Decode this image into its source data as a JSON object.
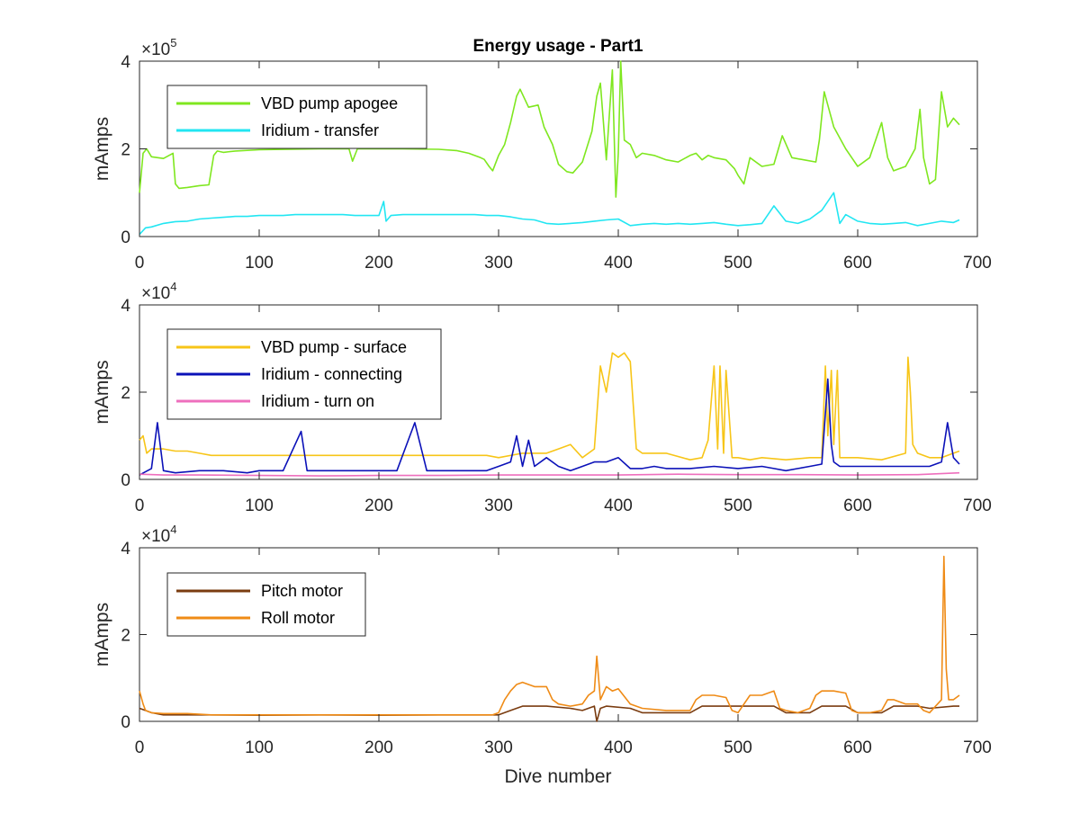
{
  "figure": {
    "title": "Energy usage - Part1",
    "xlabel": "Dive number"
  },
  "chart_data": [
    {
      "type": "line",
      "title": "Energy usage - Part1",
      "ylabel": "mAmps",
      "xlabel": "",
      "exponent_base": "×10",
      "exponent": "5",
      "xlim": [
        0,
        700
      ],
      "ylim": [
        0,
        400000
      ],
      "xticks": [
        "0",
        "100",
        "200",
        "300",
        "400",
        "500",
        "600",
        "700"
      ],
      "yticks": [
        "0",
        "2",
        "4"
      ],
      "ytick_values": [
        0,
        200000,
        400000
      ],
      "legend_position": "top-left",
      "series": [
        {
          "name": "VBD pump apogee",
          "color": "#7fe71f",
          "x": [
            0,
            3,
            6,
            10,
            20,
            28,
            30,
            33,
            40,
            50,
            58,
            62,
            65,
            70,
            80,
            100,
            150,
            175,
            178,
            182,
            190,
            200,
            220,
            250,
            265,
            275,
            285,
            288,
            292,
            295,
            300,
            305,
            310,
            315,
            318,
            325,
            333,
            338,
            345,
            350,
            357,
            362,
            370,
            378,
            382,
            385,
            390,
            395,
            398,
            400,
            402,
            405,
            410,
            415,
            420,
            430,
            440,
            450,
            460,
            465,
            470,
            475,
            480,
            490,
            497,
            500,
            505,
            510,
            520,
            530,
            537,
            545,
            555,
            565,
            568,
            572,
            580,
            590,
            595,
            600,
            610,
            620,
            625,
            630,
            640,
            648,
            652,
            655,
            660,
            665,
            670,
            675,
            680,
            685
          ],
          "y": [
            100000,
            190000,
            200000,
            182000,
            178000,
            190000,
            120000,
            110000,
            112000,
            116000,
            118000,
            185000,
            195000,
            192000,
            195000,
            198000,
            200000,
            200000,
            172000,
            200000,
            200000,
            200000,
            200000,
            199000,
            196000,
            190000,
            180000,
            176000,
            160000,
            150000,
            185000,
            210000,
            260000,
            320000,
            336000,
            295000,
            300000,
            250000,
            210000,
            165000,
            148000,
            145000,
            170000,
            240000,
            320000,
            350000,
            175000,
            380000,
            90000,
            190000,
            400000,
            220000,
            210000,
            180000,
            190000,
            185000,
            175000,
            170000,
            185000,
            190000,
            175000,
            185000,
            180000,
            175000,
            155000,
            140000,
            120000,
            180000,
            160000,
            165000,
            230000,
            180000,
            175000,
            170000,
            220000,
            330000,
            250000,
            200000,
            180000,
            160000,
            180000,
            260000,
            180000,
            150000,
            160000,
            200000,
            290000,
            180000,
            120000,
            130000,
            330000,
            250000,
            270000,
            255000
          ]
        },
        {
          "name": "Iridium - transfer",
          "color": "#22e6f2",
          "x": [
            0,
            5,
            10,
            20,
            30,
            40,
            50,
            60,
            70,
            80,
            90,
            100,
            110,
            120,
            130,
            140,
            150,
            160,
            170,
            180,
            190,
            200,
            204,
            206,
            210,
            220,
            230,
            240,
            250,
            260,
            270,
            280,
            290,
            300,
            310,
            320,
            330,
            340,
            350,
            360,
            370,
            380,
            390,
            400,
            410,
            420,
            430,
            440,
            450,
            460,
            470,
            480,
            490,
            500,
            510,
            520,
            530,
            540,
            550,
            560,
            570,
            580,
            585,
            590,
            600,
            610,
            620,
            630,
            640,
            650,
            660,
            670,
            680,
            685
          ],
          "y": [
            5000,
            20000,
            22000,
            30000,
            34000,
            35000,
            40000,
            42000,
            44000,
            46000,
            46000,
            48000,
            48000,
            48000,
            50000,
            50000,
            50000,
            50000,
            50000,
            48000,
            48000,
            48000,
            80000,
            35000,
            48000,
            50000,
            50000,
            50000,
            50000,
            50000,
            50000,
            50000,
            48000,
            48000,
            45000,
            40000,
            38000,
            30000,
            28000,
            30000,
            32000,
            35000,
            38000,
            40000,
            25000,
            28000,
            30000,
            28000,
            30000,
            28000,
            30000,
            32000,
            28000,
            25000,
            27000,
            30000,
            70000,
            35000,
            30000,
            40000,
            60000,
            100000,
            30000,
            50000,
            35000,
            30000,
            28000,
            30000,
            32000,
            25000,
            30000,
            35000,
            32000,
            38000
          ]
        }
      ]
    },
    {
      "type": "line",
      "title": "",
      "ylabel": "mAmps",
      "xlabel": "",
      "exponent_base": "×10",
      "exponent": "4",
      "xlim": [
        0,
        700
      ],
      "ylim": [
        0,
        40000
      ],
      "xticks": [
        "0",
        "100",
        "200",
        "300",
        "400",
        "500",
        "600",
        "700"
      ],
      "yticks": [
        "0",
        "2",
        "4"
      ],
      "ytick_values": [
        0,
        20000,
        40000
      ],
      "legend_position": "top-left",
      "series": [
        {
          "name": "VBD pump - surface",
          "color": "#f7c518",
          "x": [
            0,
            3,
            6,
            10,
            20,
            30,
            40,
            50,
            60,
            80,
            100,
            120,
            150,
            180,
            200,
            230,
            260,
            290,
            300,
            320,
            340,
            350,
            360,
            370,
            380,
            385,
            390,
            395,
            400,
            405,
            410,
            415,
            420,
            440,
            460,
            470,
            475,
            480,
            483,
            485,
            488,
            490,
            495,
            500,
            510,
            520,
            540,
            560,
            570,
            573,
            575,
            578,
            580,
            583,
            585,
            590,
            600,
            620,
            640,
            642,
            644,
            646,
            650,
            660,
            670,
            680,
            685
          ],
          "y": [
            9000,
            10000,
            6000,
            7000,
            7000,
            6500,
            6500,
            6000,
            5500,
            5500,
            5500,
            5500,
            5500,
            5500,
            5500,
            5500,
            5500,
            5500,
            5000,
            6000,
            6000,
            7000,
            8000,
            5000,
            7000,
            26000,
            20000,
            29000,
            28000,
            29000,
            27000,
            7000,
            6000,
            6000,
            4500,
            5000,
            9000,
            26000,
            7000,
            26000,
            6000,
            25000,
            5000,
            5000,
            4500,
            5000,
            4500,
            5000,
            5000,
            26000,
            10000,
            25000,
            8000,
            25000,
            5000,
            5000,
            5000,
            4500,
            6000,
            28000,
            20000,
            8000,
            6000,
            5000,
            5000,
            6000,
            6500
          ]
        },
        {
          "name": "Iridium - connecting",
          "color": "#0b11b8",
          "x": [
            0,
            10,
            15,
            20,
            30,
            50,
            70,
            90,
            100,
            120,
            135,
            140,
            160,
            180,
            200,
            215,
            230,
            240,
            260,
            280,
            290,
            300,
            310,
            315,
            320,
            325,
            330,
            340,
            350,
            360,
            370,
            380,
            390,
            400,
            410,
            420,
            430,
            440,
            460,
            480,
            500,
            520,
            530,
            540,
            550,
            560,
            570,
            575,
            578,
            580,
            585,
            590,
            600,
            620,
            640,
            650,
            660,
            670,
            675,
            680,
            685
          ],
          "y": [
            1000,
            2500,
            13000,
            2000,
            1500,
            2000,
            2000,
            1500,
            2000,
            2000,
            11000,
            2000,
            2000,
            2000,
            2000,
            2000,
            13000,
            2000,
            2000,
            2000,
            2000,
            3000,
            4000,
            10000,
            3000,
            9000,
            3000,
            5000,
            3000,
            2000,
            3000,
            4000,
            4000,
            5000,
            2500,
            2500,
            3000,
            2500,
            2500,
            3000,
            2500,
            3000,
            2500,
            2000,
            2500,
            3000,
            3500,
            23000,
            8000,
            4000,
            3000,
            3000,
            3000,
            3000,
            3000,
            3000,
            3000,
            4000,
            13000,
            5000,
            3500
          ]
        },
        {
          "name": "Iridium - turn on",
          "color": "#ee6fbd",
          "x": [
            0,
            20,
            50,
            100,
            150,
            200,
            250,
            300,
            350,
            400,
            450,
            500,
            550,
            600,
            650,
            685
          ],
          "y": [
            1200,
            1000,
            1000,
            900,
            800,
            900,
            900,
            1000,
            1000,
            1000,
            1200,
            1100,
            1100,
            1000,
            1100,
            1500
          ]
        }
      ]
    },
    {
      "type": "line",
      "title": "",
      "ylabel": "mAmps",
      "xlabel": "Dive number",
      "exponent_base": "×10",
      "exponent": "4",
      "xlim": [
        0,
        700
      ],
      "ylim": [
        0,
        40000
      ],
      "xticks": [
        "0",
        "100",
        "200",
        "300",
        "400",
        "500",
        "600",
        "700"
      ],
      "yticks": [
        "0",
        "2",
        "4"
      ],
      "ytick_values": [
        0,
        20000,
        40000
      ],
      "legend_position": "top-left",
      "series": [
        {
          "name": "Pitch motor",
          "color": "#7a3c10",
          "x": [
            0,
            5,
            10,
            20,
            30,
            60,
            100,
            150,
            200,
            250,
            300,
            310,
            320,
            340,
            360,
            370,
            380,
            382,
            385,
            390,
            410,
            420,
            460,
            470,
            500,
            530,
            540,
            560,
            570,
            590,
            600,
            620,
            630,
            650,
            660,
            680,
            685
          ],
          "y": [
            3000,
            2500,
            2000,
            1500,
            1500,
            1500,
            1400,
            1500,
            1400,
            1500,
            1500,
            2500,
            3500,
            3500,
            3000,
            2500,
            3500,
            0,
            3000,
            3500,
            3000,
            2000,
            2000,
            3500,
            3500,
            3500,
            2000,
            2000,
            3500,
            3500,
            2000,
            2000,
            3500,
            3500,
            3000,
            3500,
            3500
          ]
        },
        {
          "name": "Roll motor",
          "color": "#ef8b16",
          "x": [
            0,
            3,
            5,
            10,
            20,
            40,
            60,
            80,
            100,
            150,
            200,
            250,
            295,
            300,
            305,
            310,
            315,
            320,
            330,
            340,
            345,
            350,
            360,
            370,
            375,
            380,
            382,
            385,
            390,
            395,
            400,
            410,
            420,
            440,
            460,
            465,
            470,
            480,
            490,
            495,
            500,
            510,
            520,
            530,
            535,
            540,
            550,
            560,
            565,
            570,
            580,
            590,
            595,
            600,
            610,
            620,
            625,
            630,
            640,
            650,
            655,
            660,
            670,
            672,
            674,
            676,
            680,
            685
          ],
          "y": [
            7000,
            4000,
            2500,
            2000,
            1800,
            1800,
            1500,
            1500,
            1500,
            1500,
            1500,
            1500,
            1500,
            2000,
            5000,
            7000,
            8500,
            9000,
            8000,
            8000,
            5000,
            4000,
            3500,
            4000,
            6000,
            7000,
            15000,
            5000,
            8000,
            7000,
            7500,
            4000,
            3000,
            2500,
            2500,
            5000,
            6000,
            6000,
            5500,
            2500,
            2000,
            6000,
            6000,
            7000,
            3000,
            2500,
            2000,
            3000,
            6000,
            7000,
            7000,
            6500,
            2500,
            2000,
            2000,
            2500,
            5000,
            5000,
            4000,
            4000,
            2500,
            2000,
            5000,
            38000,
            12000,
            5000,
            5000,
            6000
          ]
        }
      ]
    }
  ]
}
